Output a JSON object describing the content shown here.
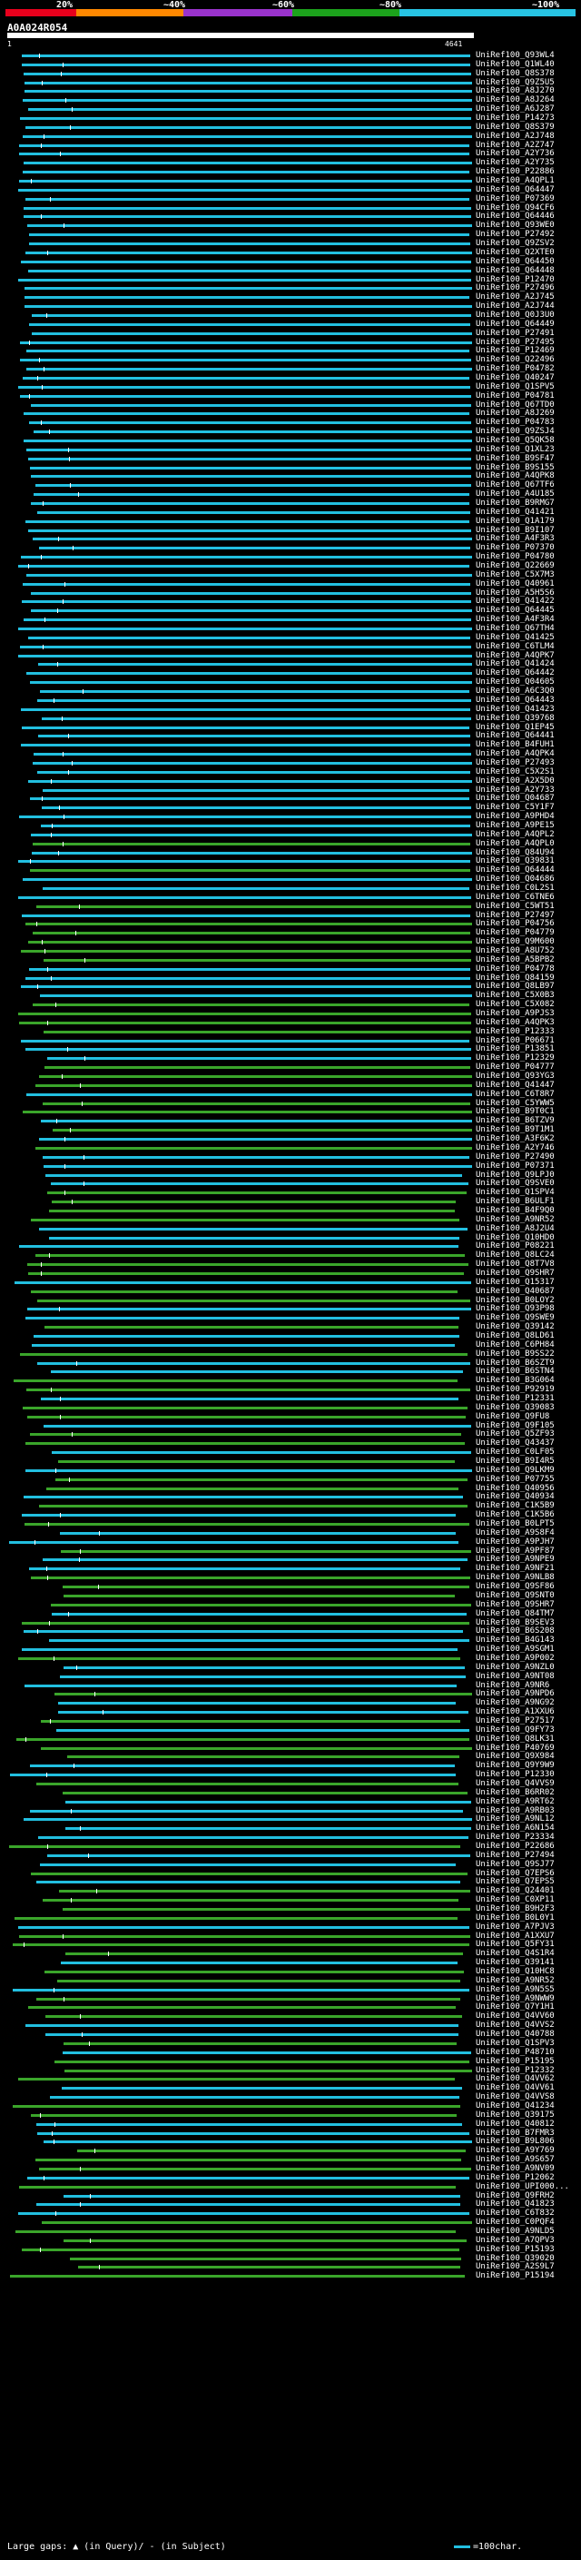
{
  "scale": {
    "labels": [
      "20%",
      "~40%",
      "~60%",
      "~80%",
      "~100%"
    ],
    "colors": [
      "#e8001c",
      "#ff8800",
      "#9a33cc",
      "#1ca21c",
      "#27c3e3"
    ]
  },
  "query": {
    "name": "A0A024R054",
    "start": "1",
    "end": "4641"
  },
  "colors": {
    "high": "#22bfe0",
    "mid": "#3aa52a",
    "low": "#1c6a1c"
  },
  "hits": [
    "UniRef100_Q93WL4",
    "UniRef100_Q1WL40",
    "UniRef100_Q8S378",
    "UniRef100_Q9Z5U5",
    "UniRef100_A8J270",
    "UniRef100_A8J264",
    "UniRef100_A6J287",
    "UniRef100_P14273",
    "UniRef100_Q8S379",
    "UniRef100_A2J748",
    "UniRef100_A2Z747",
    "UniRef100_A2Y736",
    "UniRef100_A2Y735",
    "UniRef100_P22886",
    "UniRef100_A4QPL1",
    "UniRef100_Q64447",
    "UniRef100_P07369",
    "UniRef100_Q94CF6",
    "UniRef100_Q64446",
    "UniRef100_Q93WE0",
    "UniRef100_P27492",
    "UniRef100_Q9ZSV2",
    "UniRef100_Q2XTE0",
    "UniRef100_Q64450",
    "UniRef100_Q64448",
    "UniRef100_P12470",
    "UniRef100_P27496",
    "UniRef100_A2J745",
    "UniRef100_A2J744",
    "UniRef100_Q0J3U0",
    "UniRef100_Q64449",
    "UniRef100_P27491",
    "UniRef100_P27495",
    "UniRef100_P12469",
    "UniRef100_Q22496",
    "UniRef100_P04782",
    "UniRef100_Q40247",
    "UniRef100_Q1SPV5",
    "UniRef100_P04781",
    "UniRef100_Q67TD0",
    "UniRef100_A8J269",
    "UniRef100_P04783",
    "UniRef100_Q9ZSJ4",
    "UniRef100_Q5QK58",
    "UniRef100_Q1XL23",
    "UniRef100_B9SF47",
    "UniRef100_B9S155",
    "UniRef100_A4QPK8",
    "UniRef100_Q67TF6",
    "UniRef100_A4U185",
    "UniRef100_B9RMG7",
    "UniRef100_Q41421",
    "UniRef100_Q1A179",
    "UniRef100_B9I107",
    "UniRef100_A4F3R3",
    "UniRef100_P07370",
    "UniRef100_P04780",
    "UniRef100_Q22669",
    "UniRef100_C5X7M3",
    "UniRef100_Q40961",
    "UniRef100_A5H5S6",
    "UniRef100_Q41422",
    "UniRef100_Q64445",
    "UniRef100_A4F3R4",
    "UniRef100_Q67TH4",
    "UniRef100_Q41425",
    "UniRef100_C6TLM4",
    "UniRef100_A4QPK7",
    "UniRef100_Q41424",
    "UniRef100_Q64442",
    "UniRef100_Q04605",
    "UniRef100_A6C3Q0",
    "UniRef100_Q64443",
    "UniRef100_Q41423",
    "UniRef100_Q39768",
    "UniRef100_Q1EP45",
    "UniRef100_Q64441",
    "UniRef100_B4FUH1",
    "UniRef100_A4QPK4",
    "UniRef100_P27493",
    "UniRef100_C5X2S1",
    "UniRef100_A2X5D0",
    "UniRef100_A2Y733",
    "UniRef100_Q04687",
    "UniRef100_C5Y1F7",
    "UniRef100_A9PHD4",
    "UniRef100_A9PE15",
    "UniRef100_A4QPL2",
    "UniRef100_A4QPL0",
    "UniRef100_Q84U94",
    "UniRef100_Q39831",
    "UniRef100_Q64444",
    "UniRef100_Q04686",
    "UniRef100_C0L2S1",
    "UniRef100_C6TNE6",
    "UniRef100_C5WT51",
    "UniRef100_P27497",
    "UniRef100_P04756",
    "UniRef100_P04779",
    "UniRef100_Q9M600",
    "UniRef100_A8U752",
    "UniRef100_A5BPB2",
    "UniRef100_P04778",
    "UniRef100_Q84159",
    "UniRef100_Q8LB97",
    "UniRef100_C5X0B3",
    "UniRef100_C5X082",
    "UniRef100_A9PJS3",
    "UniRef100_A4QPK3",
    "UniRef100_P12333",
    "UniRef100_P06671",
    "UniRef100_P13851",
    "UniRef100_P12329",
    "UniRef100_P04777",
    "UniRef100_Q93YG3",
    "UniRef100_Q41447",
    "UniRef100_C6T8R7",
    "UniRef100_C5YWW5",
    "UniRef100_B9T0C1",
    "UniRef100_B6TZV9",
    "UniRef100_B9T1M1",
    "UniRef100_A3F6K2",
    "UniRef100_A2Y746",
    "UniRef100_P27490",
    "UniRef100_P07371",
    "UniRef100_Q9LPJ0",
    "UniRef100_Q9SVE0",
    "UniRef100_Q1SPV4",
    "UniRef100_B6ULF1",
    "UniRef100_B4F9Q0",
    "UniRef100_A9NR52",
    "UniRef100_A8J2U4",
    "UniRef100_Q10HD0",
    "UniRef100_P08221",
    "UniRef100_Q8LC24",
    "UniRef100_Q8T7V8",
    "UniRef100_Q9SHR7",
    "UniRef100_Q15317",
    "UniRef100_Q40687",
    "UniRef100_B0LOY2",
    "UniRef100_Q93P98",
    "UniRef100_Q9SWE9",
    "UniRef100_Q39142",
    "UniRef100_Q8LD61",
    "UniRef100_C6PH84",
    "UniRef100_B9SS22",
    "UniRef100_B6SZT9",
    "UniRef100_B6STN4",
    "UniRef100_B3G064",
    "UniRef100_P92919",
    "UniRef100_P12331",
    "UniRef100_Q39083",
    "UniRef100_Q9FU8",
    "UniRef100_Q9F105",
    "UniRef100_Q5ZF93",
    "UniRef100_Q43437",
    "UniRef100_C0LF05",
    "UniRef100_B9I4R5",
    "UniRef100_Q9LKM9",
    "UniRef100_P07755",
    "UniRef100_Q40956",
    "UniRef100_Q40934",
    "UniRef100_C1K5B9",
    "UniRef100_C1K5B6",
    "UniRef100_B0LPT5",
    "UniRef100_A9S8F4",
    "UniRef100_A9PJH7",
    "UniRef100_A9PF87",
    "UniRef100_A9NPE9",
    "UniRef100_A9NF21",
    "UniRef100_A9NLB8",
    "UniRef100_Q9SF86",
    "UniRef100_Q9SNT0",
    "UniRef100_Q9SHR7",
    "UniRef100_Q84TM7",
    "UniRef100_B9SEV3",
    "UniRef100_B6S208",
    "UniRef100_B4G143",
    "UniRef100_A9SGM1",
    "UniRef100_A9P002",
    "UniRef100_A9NZL0",
    "UniRef100_A9NT08",
    "UniRef100_A9NR6",
    "UniRef100_A9NPD6",
    "UniRef100_A9NG92",
    "UniRef100_A1XXU6",
    "UniRef100_P27517",
    "UniRef100_Q9FY73",
    "UniRef100_Q8LK31",
    "UniRef100_P40769",
    "UniRef100_Q9X984",
    "UniRef100_Q9Y9W9",
    "UniRef100_P12330",
    "UniRef100_Q4VVS9",
    "UniRef100_B6RR02",
    "UniRef100_A9RT62",
    "UniRef100_A9RB03",
    "UniRef100_A9NL12",
    "UniRef100_A6N154",
    "UniRef100_P23334",
    "UniRef100_P22686",
    "UniRef100_P27494",
    "UniRef100_Q9SJ77",
    "UniRef100_Q7EPS6",
    "UniRef100_Q7EPS5",
    "UniRef100_Q24401",
    "UniRef100_C0XP11",
    "UniRef100_B9H2F3",
    "UniRef100_B0L0Y1",
    "UniRef100_A7PJV3",
    "UniRef100_A1XXU7",
    "UniRef100_Q5FY31",
    "UniRef100_Q4S1R4",
    "UniRef100_Q39141",
    "UniRef100_Q10HC8",
    "UniRef100_A9NR52",
    "UniRef100_A9N5S5",
    "UniRef100_A9NWW9",
    "UniRef100_Q7Y1H1",
    "UniRef100_Q4VV60",
    "UniRef100_Q4VVS2",
    "UniRef100_Q40788",
    "UniRef100_Q1SPV3",
    "UniRef100_P48710",
    "UniRef100_P15195",
    "UniRef100_P12332",
    "UniRef100_Q4VV62",
    "UniRef100_Q4VV61",
    "UniRef100_Q4VVS8",
    "UniRef100_Q41234",
    "UniRef100_Q39175",
    "UniRef100_Q40812",
    "UniRef100_B7FMR3",
    "UniRef100_B9L806",
    "UniRef100_A9Y769",
    "UniRef100_A9S657",
    "UniRef100_A9NV09",
    "UniRef100_P12062",
    "UniRef100_UPI000...",
    "UniRef100_Q9FRH2",
    "UniRef100_Q41823",
    "UniRef100_C6T832",
    "UniRef100_C0PQF4",
    "UniRef100_A9NLD5",
    "UniRef100_A7QPV3",
    "UniRef100_P15193",
    "UniRef100_Q39020",
    "UniRef100_A2S9L7",
    "UniRef100_P15194"
  ],
  "legend": {
    "gaps_text": "Large gaps: ▲ (in Query)/ - (in Subject)",
    "scale_text": "=100char."
  }
}
